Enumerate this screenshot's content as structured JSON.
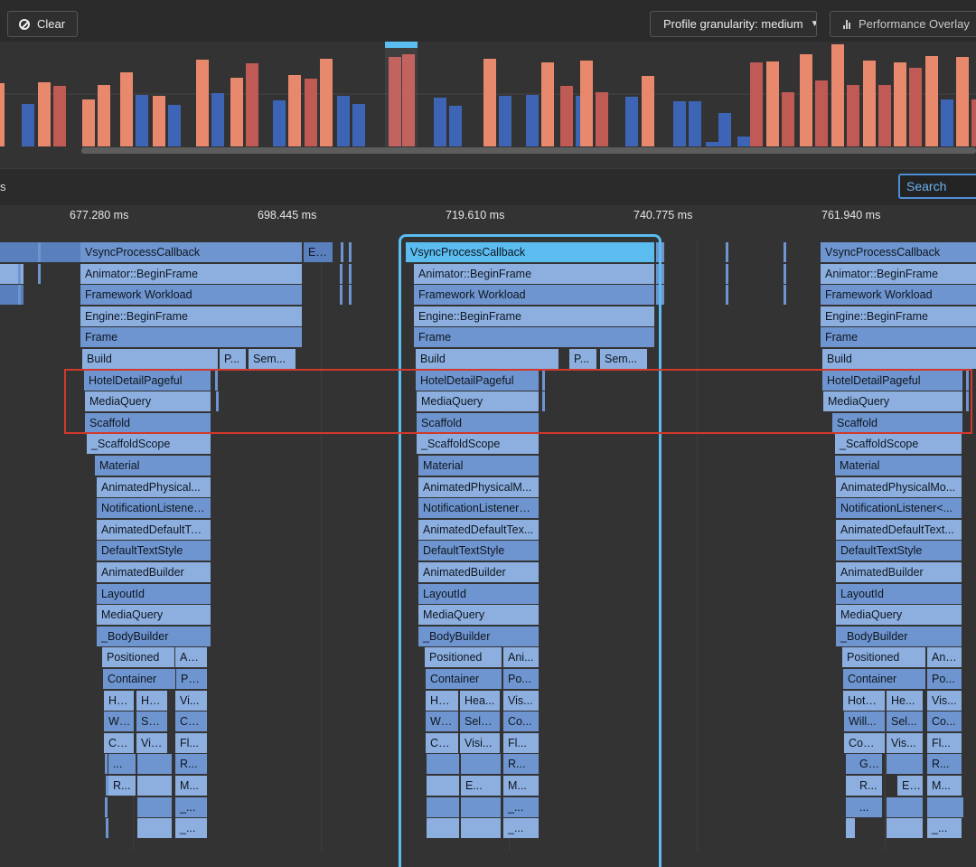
{
  "toolbar": {
    "clear_label": "Clear",
    "granularity_label": "Profile granularity: medium",
    "perf_overlay_label": "Performance Overlay"
  },
  "overview": {
    "ui_color": "#e8896e",
    "ui_jank_color": "#c05a55",
    "raster_color": "#3e65b5",
    "selection_color": "#5bbcf0"
  },
  "secondary": {
    "left_text": "s",
    "search_placeholder": "Search"
  },
  "timeline": {
    "ticks": [
      "677.280 ms",
      "698.445 ms",
      "719.610 ms",
      "740.775 ms",
      "761.940 ms"
    ]
  },
  "flame": {
    "top_frames": [
      "VsyncProcessCallback",
      "Animator::BeginFrame",
      "Framework Workload",
      "Engine::BeginFrame",
      "Frame",
      "Build",
      "HotelDetailPageful",
      "MediaQuery",
      "Scaffold",
      "_ScaffoldScope",
      "Material"
    ],
    "misc": {
      "en": "En...",
      "p": "P...",
      "sem": "Sem..."
    },
    "col1": [
      "AnimatedPhysical...",
      "NotificationListener...",
      "AnimatedDefaultTe...",
      "DefaultTextStyle",
      "AnimatedBuilder",
      "LayoutId",
      "MediaQuery",
      "_BodyBuilder"
    ],
    "col2": [
      "AnimatedPhysicalM...",
      "NotificationListener<...",
      "AnimatedDefaultTex...",
      "DefaultTextStyle",
      "AnimatedBuilder",
      "LayoutId",
      "MediaQuery",
      "_BodyBuilder"
    ],
    "col3": [
      "AnimatedPhysicalMo...",
      "NotificationListener<...",
      "AnimatedDefaultText...",
      "DefaultTextStyle",
      "AnimatedBuilder",
      "LayoutId",
      "MediaQuery",
      "_BodyBuilder"
    ],
    "leaf1": {
      "positioned": "Positioned",
      "ani": "An...",
      "container": "Container",
      "po": "Po...",
      "ho": "Ho...",
      "he": "He...",
      "vi": "Vi...",
      "wil": "Wil...",
      "sel": "Sel...",
      "co": "Co...",
      "co2": "Co...",
      "vis": "Vis...",
      "fl": "Fl...",
      "dots": "...",
      "r1": "R...",
      "r2": "R...",
      "m": "M...",
      "u1": "_...",
      "u2": "_..."
    },
    "leaf2": {
      "positioned": "Positioned",
      "ani": "Ani...",
      "container": "Container",
      "po": "Po...",
      "ho": "Ho...",
      "he": "Hea...",
      "vi": "Vis...",
      "wil": "Wil...",
      "sel": "Sele...",
      "co": "Co...",
      "co2": "Co...",
      "vis": "Visi...",
      "fl": "Fl...",
      "r1": "R...",
      "e": "E...",
      "m": "M...",
      "u1": "_...",
      "u2": "_..."
    },
    "leaf3": {
      "positioned": "Positioned",
      "ani": "Ani...",
      "container": "Container",
      "po": "Po...",
      "ho": "Hote...",
      "he": "He...",
      "vi": "Vis...",
      "wil": "Will...",
      "sel": "Sel...",
      "co": "Co...",
      "co2": "Cont...",
      "vis": "Vis...",
      "fl": "Fl...",
      "g": "G...",
      "r1": "R...",
      "r2": "R...",
      "e": "E...",
      "m": "M...",
      "dots": "...",
      "u1": "_..."
    }
  }
}
